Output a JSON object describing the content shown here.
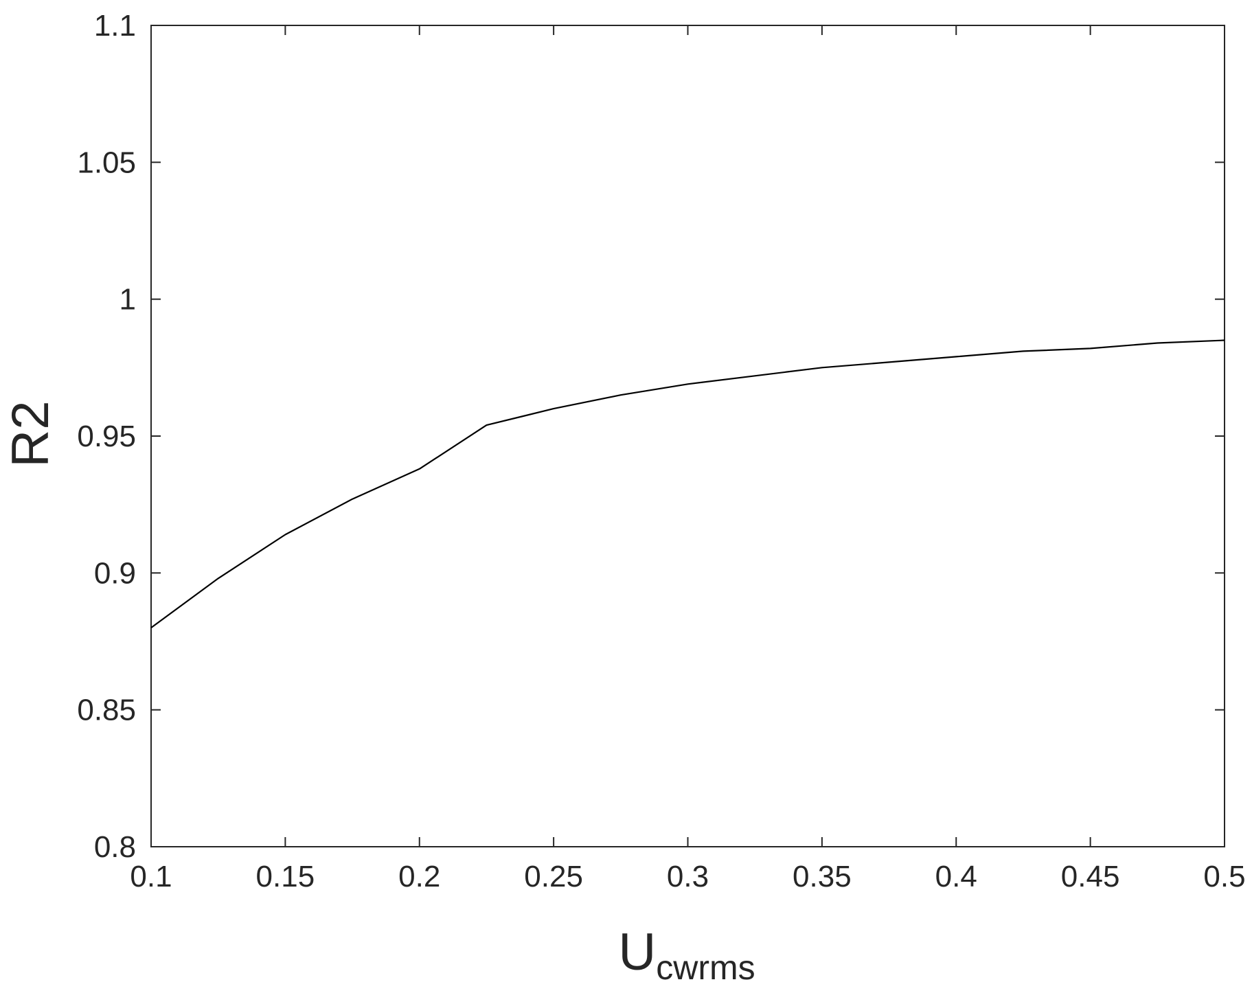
{
  "chart_data": {
    "type": "line",
    "xlabel": "U",
    "xlabel_sub": "cwrms",
    "ylabel": "R2",
    "xlim": [
      0.1,
      0.5
    ],
    "ylim": [
      0.8,
      1.1
    ],
    "xticks": [
      0.1,
      0.15,
      0.2,
      0.25,
      0.3,
      0.35,
      0.4,
      0.45,
      0.5
    ],
    "xtick_labels": [
      "0.1",
      "0.15",
      "0.2",
      "0.25",
      "0.3",
      "0.35",
      "0.4",
      "0.45",
      "0.5"
    ],
    "yticks": [
      0.8,
      0.85,
      0.9,
      0.95,
      1.0,
      1.05,
      1.1
    ],
    "ytick_labels": [
      "0.8",
      "0.85",
      "0.9",
      "0.95",
      "1",
      "1.05",
      "1.1"
    ],
    "grid": false,
    "box": true,
    "series": [
      {
        "color": "#000000",
        "x": [
          0.1,
          0.125,
          0.15,
          0.175,
          0.2,
          0.225,
          0.25,
          0.275,
          0.3,
          0.325,
          0.35,
          0.375,
          0.4,
          0.425,
          0.45,
          0.475,
          0.5
        ],
        "y": [
          0.88,
          0.898,
          0.914,
          0.927,
          0.938,
          0.954,
          0.96,
          0.965,
          0.969,
          0.972,
          0.975,
          0.977,
          0.979,
          0.981,
          0.982,
          0.984,
          0.985
        ]
      }
    ]
  }
}
